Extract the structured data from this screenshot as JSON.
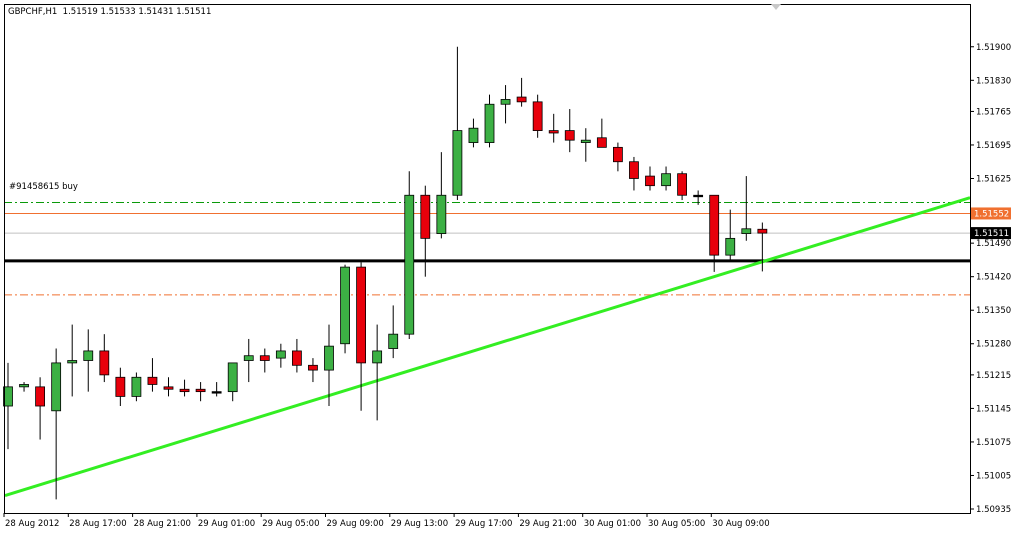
{
  "header": {
    "symbol": "GBPCHF,H1",
    "ohlc": "1.51519 1.51533 1.51431 1.51511"
  },
  "order_label": "#91458615 buy",
  "colors": {
    "bull": "#3cb044",
    "bear": "#e8000b",
    "wick": "#000000",
    "trendline": "#33ee22",
    "support": "#000000",
    "order_entry": "#0a9a0a",
    "take_profit": "#f07030",
    "stop_loss": "#f07030",
    "bid_line": "#c0c0c0",
    "price_badge_bg": "#f07030",
    "current_badge_bg": "#000000"
  },
  "chart_data": {
    "type": "candlestick",
    "instrument": "GBPCHF",
    "timeframe": "H1",
    "ylim": [
      1.50935,
      1.51935
    ],
    "y_ticks": [
      "1.51900",
      "1.51830",
      "1.51765",
      "1.51695",
      "1.51625",
      "1.51490",
      "1.51420",
      "1.51350",
      "1.51280",
      "1.51215",
      "1.51145",
      "1.51075",
      "1.51005",
      "1.50935"
    ],
    "x_ticks": [
      "28 Aug 2012",
      "28 Aug 17:00",
      "28 Aug 21:00",
      "29 Aug 01:00",
      "29 Aug 05:00",
      "29 Aug 09:00",
      "29 Aug 13:00",
      "29 Aug 17:00",
      "29 Aug 21:00",
      "30 Aug 01:00",
      "30 Aug 05:00",
      "30 Aug 09:00"
    ],
    "levels": {
      "order_entry": 1.51575,
      "take_profit": 1.51552,
      "bid": 1.51511,
      "support": 1.51453,
      "stop_loss": 1.51382
    },
    "price_badges": [
      "1.51552",
      "1.51511"
    ],
    "trendline": {
      "start": [
        "28 Aug 13:00",
        1.50963
      ],
      "end": [
        "30 Aug 12:00",
        1.51585
      ]
    },
    "candles": [
      {
        "o": 1.5115,
        "h": 1.5124,
        "l": 1.5106,
        "c": 1.5119
      },
      {
        "o": 1.5119,
        "h": 1.512,
        "l": 1.5118,
        "c": 1.51195
      },
      {
        "o": 1.5119,
        "h": 1.5121,
        "l": 1.5108,
        "c": 1.5115
      },
      {
        "o": 1.5114,
        "h": 1.5127,
        "l": 1.50955,
        "c": 1.5124
      },
      {
        "o": 1.5124,
        "h": 1.5132,
        "l": 1.5117,
        "c": 1.51245
      },
      {
        "o": 1.51245,
        "h": 1.5131,
        "l": 1.5118,
        "c": 1.51265
      },
      {
        "o": 1.51265,
        "h": 1.513,
        "l": 1.512,
        "c": 1.51215
      },
      {
        "o": 1.5121,
        "h": 1.5123,
        "l": 1.5115,
        "c": 1.5117
      },
      {
        "o": 1.5117,
        "h": 1.5122,
        "l": 1.5116,
        "c": 1.5121
      },
      {
        "o": 1.5121,
        "h": 1.5125,
        "l": 1.5118,
        "c": 1.51195
      },
      {
        "o": 1.5119,
        "h": 1.5121,
        "l": 1.5117,
        "c": 1.51185
      },
      {
        "o": 1.51185,
        "h": 1.51205,
        "l": 1.5117,
        "c": 1.5118
      },
      {
        "o": 1.51185,
        "h": 1.512,
        "l": 1.5116,
        "c": 1.5118
      },
      {
        "o": 1.5118,
        "h": 1.512,
        "l": 1.5117,
        "c": 1.5118
      },
      {
        "o": 1.5118,
        "h": 1.5124,
        "l": 1.5116,
        "c": 1.5124
      },
      {
        "o": 1.51245,
        "h": 1.5129,
        "l": 1.512,
        "c": 1.51255
      },
      {
        "o": 1.51255,
        "h": 1.5127,
        "l": 1.5122,
        "c": 1.51245
      },
      {
        "o": 1.5125,
        "h": 1.5128,
        "l": 1.5123,
        "c": 1.51265
      },
      {
        "o": 1.51265,
        "h": 1.5129,
        "l": 1.5122,
        "c": 1.51235
      },
      {
        "o": 1.51235,
        "h": 1.5125,
        "l": 1.512,
        "c": 1.51225
      },
      {
        "o": 1.51225,
        "h": 1.5132,
        "l": 1.5115,
        "c": 1.51275
      },
      {
        "o": 1.5128,
        "h": 1.51445,
        "l": 1.5126,
        "c": 1.5144
      },
      {
        "o": 1.5144,
        "h": 1.5145,
        "l": 1.5114,
        "c": 1.5124
      },
      {
        "o": 1.5124,
        "h": 1.5132,
        "l": 1.5112,
        "c": 1.51265
      },
      {
        "o": 1.5127,
        "h": 1.5136,
        "l": 1.5125,
        "c": 1.513
      },
      {
        "o": 1.513,
        "h": 1.5164,
        "l": 1.5129,
        "c": 1.5159
      },
      {
        "o": 1.5159,
        "h": 1.5161,
        "l": 1.5142,
        "c": 1.515
      },
      {
        "o": 1.5151,
        "h": 1.5168,
        "l": 1.515,
        "c": 1.5159
      },
      {
        "o": 1.5159,
        "h": 1.519,
        "l": 1.5158,
        "c": 1.51725
      },
      {
        "o": 1.517,
        "h": 1.5175,
        "l": 1.5169,
        "c": 1.5173
      },
      {
        "o": 1.517,
        "h": 1.518,
        "l": 1.5169,
        "c": 1.5178
      },
      {
        "o": 1.5178,
        "h": 1.5182,
        "l": 1.5174,
        "c": 1.5179
      },
      {
        "o": 1.51795,
        "h": 1.51835,
        "l": 1.51775,
        "c": 1.51785
      },
      {
        "o": 1.51785,
        "h": 1.518,
        "l": 1.5171,
        "c": 1.51725
      },
      {
        "o": 1.51725,
        "h": 1.5176,
        "l": 1.517,
        "c": 1.5172
      },
      {
        "o": 1.51725,
        "h": 1.5177,
        "l": 1.5168,
        "c": 1.51705
      },
      {
        "o": 1.517,
        "h": 1.5173,
        "l": 1.5166,
        "c": 1.51705
      },
      {
        "o": 1.5171,
        "h": 1.5175,
        "l": 1.5169,
        "c": 1.5169
      },
      {
        "o": 1.5169,
        "h": 1.517,
        "l": 1.5164,
        "c": 1.5166
      },
      {
        "o": 1.5166,
        "h": 1.5167,
        "l": 1.516,
        "c": 1.51625
      },
      {
        "o": 1.5163,
        "h": 1.5165,
        "l": 1.516,
        "c": 1.5161
      },
      {
        "o": 1.5161,
        "h": 1.5165,
        "l": 1.516,
        "c": 1.51635
      },
      {
        "o": 1.51635,
        "h": 1.5164,
        "l": 1.5158,
        "c": 1.5159
      },
      {
        "o": 1.5159,
        "h": 1.516,
        "l": 1.5157,
        "c": 1.5159
      },
      {
        "o": 1.5159,
        "h": 1.5159,
        "l": 1.5143,
        "c": 1.51465
      },
      {
        "o": 1.51465,
        "h": 1.5156,
        "l": 1.51455,
        "c": 1.515
      },
      {
        "o": 1.5151,
        "h": 1.5163,
        "l": 1.51495,
        "c": 1.5152
      },
      {
        "o": 1.51519,
        "h": 1.51533,
        "l": 1.51431,
        "c": 1.51511
      }
    ]
  }
}
